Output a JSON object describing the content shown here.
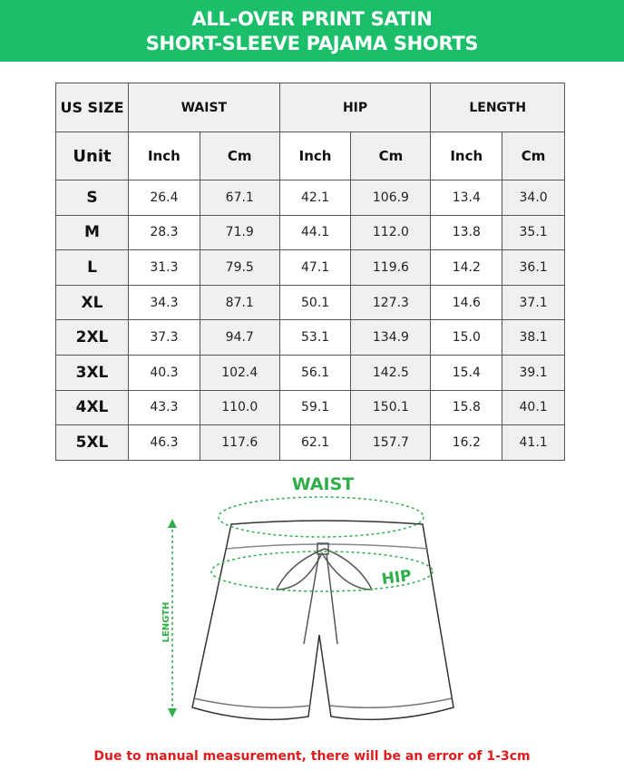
{
  "title": {
    "line1": "ALL-OVER PRINT SATIN",
    "line2": "SHORT-SLEEVE PAJAMA SHORTS"
  },
  "table": {
    "size_header": "US SIZE",
    "unit_header": "Unit",
    "groups": [
      "WAIST",
      "HIP",
      "LENGTH"
    ],
    "units": [
      "Inch",
      "Cm",
      "Inch",
      "Cm",
      "Inch",
      "Cm"
    ],
    "rows": [
      {
        "size": "S",
        "values": [
          "26.4",
          "67.1",
          "42.1",
          "106.9",
          "13.4",
          "34.0"
        ]
      },
      {
        "size": "M",
        "values": [
          "28.3",
          "71.9",
          "44.1",
          "112.0",
          "13.8",
          "35.1"
        ]
      },
      {
        "size": "L",
        "values": [
          "31.3",
          "79.5",
          "47.1",
          "119.6",
          "14.2",
          "36.1"
        ]
      },
      {
        "size": "XL",
        "values": [
          "34.3",
          "87.1",
          "50.1",
          "127.3",
          "14.6",
          "37.1"
        ]
      },
      {
        "size": "2XL",
        "values": [
          "37.3",
          "94.7",
          "53.1",
          "134.9",
          "15.0",
          "38.1"
        ]
      },
      {
        "size": "3XL",
        "values": [
          "40.3",
          "102.4",
          "56.1",
          "142.5",
          "15.4",
          "39.1"
        ]
      },
      {
        "size": "4XL",
        "values": [
          "43.3",
          "110.0",
          "59.1",
          "150.1",
          "15.8",
          "40.1"
        ]
      },
      {
        "size": "5XL",
        "values": [
          "46.3",
          "117.6",
          "62.1",
          "157.7",
          "16.2",
          "41.1"
        ]
      }
    ]
  },
  "diagram": {
    "waist_label": "WAIST",
    "hip_label": "HIP",
    "length_label": "LENGTH",
    "accent": "#2fae4a"
  },
  "note": "Due to manual measurement, there will be an error of 1-3cm",
  "colors": {
    "banner": "#1bbf6a",
    "note": "#e01b1b"
  }
}
